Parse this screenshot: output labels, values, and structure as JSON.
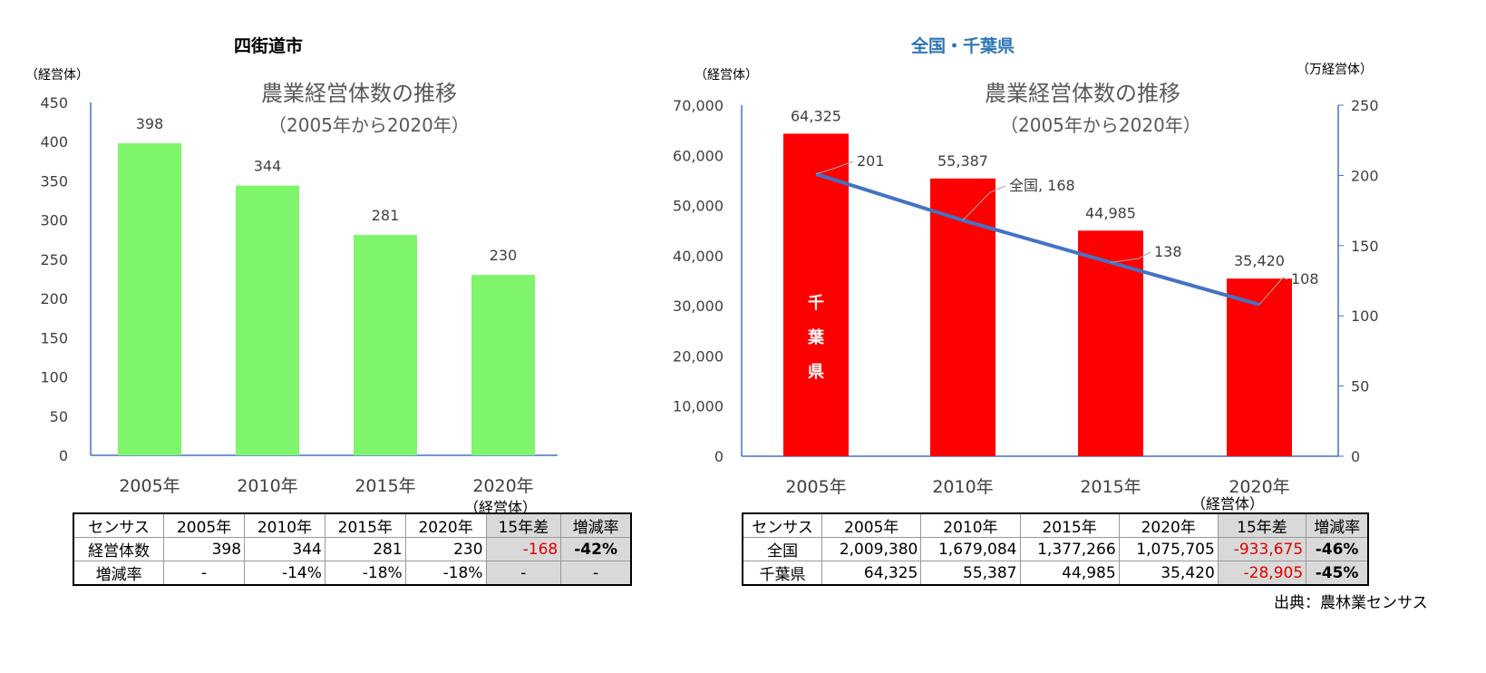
{
  "left": {
    "header": "四街道市",
    "table_unit": "（経営体）",
    "table": {
      "headers": [
        "センサス",
        "2005年",
        "2010年",
        "2015年",
        "2020年",
        "15年差",
        "増減率"
      ],
      "rows": [
        [
          "経営体数",
          "398",
          "344",
          "281",
          "230",
          "-168",
          "-42%"
        ],
        [
          "増減率",
          "-",
          "-14%",
          "-18%",
          "-18%",
          "-",
          "-"
        ]
      ]
    }
  },
  "right": {
    "header": "全国・千葉県",
    "header_color": "#2e75b6",
    "table_unit": "（経営体）",
    "table": {
      "headers": [
        "センサス",
        "2005年",
        "2010年",
        "2015年",
        "2020年",
        "15年差",
        "増減率"
      ],
      "rows": [
        [
          "全国",
          "2,009,380",
          "1,679,084",
          "1,377,266",
          "1,075,705",
          "-933,675",
          "-46%"
        ],
        [
          "千葉県",
          "64,325",
          "55,387",
          "44,985",
          "35,420",
          "-28,905",
          "-45%"
        ]
      ]
    },
    "source": "出典：農林業センサス"
  },
  "chart_data": [
    {
      "type": "bar",
      "title": "農業経営体数の推移",
      "subtitle": "（2005年から2020年）",
      "ylabel": "（経営体）",
      "categories": [
        "2005年",
        "2010年",
        "2015年",
        "2020年"
      ],
      "values": [
        398,
        344,
        281,
        230
      ],
      "data_labels": [
        "398",
        "344",
        "281",
        "230"
      ],
      "ylim": [
        0,
        450
      ],
      "yticks": [
        "0",
        "50",
        "100",
        "150",
        "200",
        "250",
        "300",
        "350",
        "400",
        "450"
      ],
      "bar_color": "#7ef56a",
      "grid": false
    },
    {
      "type": "bar+line",
      "title": "農業経営体数の推移",
      "subtitle": "（2005年から2020年）",
      "ylabel": "（経営体）",
      "y2label": "（万経営体）",
      "categories": [
        "2005年",
        "2010年",
        "2015年",
        "2020年"
      ],
      "series": [
        {
          "name": "千葉県",
          "type": "bar",
          "axis": "left",
          "values": [
            64325,
            55387,
            44985,
            35420
          ],
          "data_labels": [
            "64,325",
            "55,387",
            "44,985",
            "35,420"
          ],
          "color": "#ff0000"
        },
        {
          "name": "全国",
          "type": "line",
          "axis": "right",
          "values": [
            201,
            168,
            138,
            108
          ],
          "data_labels": [
            "201",
            "全国, 168",
            "138",
            "108"
          ],
          "color": "#4472c4"
        }
      ],
      "ylim": [
        0,
        70000
      ],
      "yticks": [
        "0",
        "10,000",
        "20,000",
        "30,000",
        "40,000",
        "50,000",
        "60,000",
        "70,000"
      ],
      "y2lim": [
        0,
        250
      ],
      "y2ticks": [
        "0",
        "50",
        "100",
        "150",
        "200",
        "250"
      ],
      "grid": false
    }
  ]
}
